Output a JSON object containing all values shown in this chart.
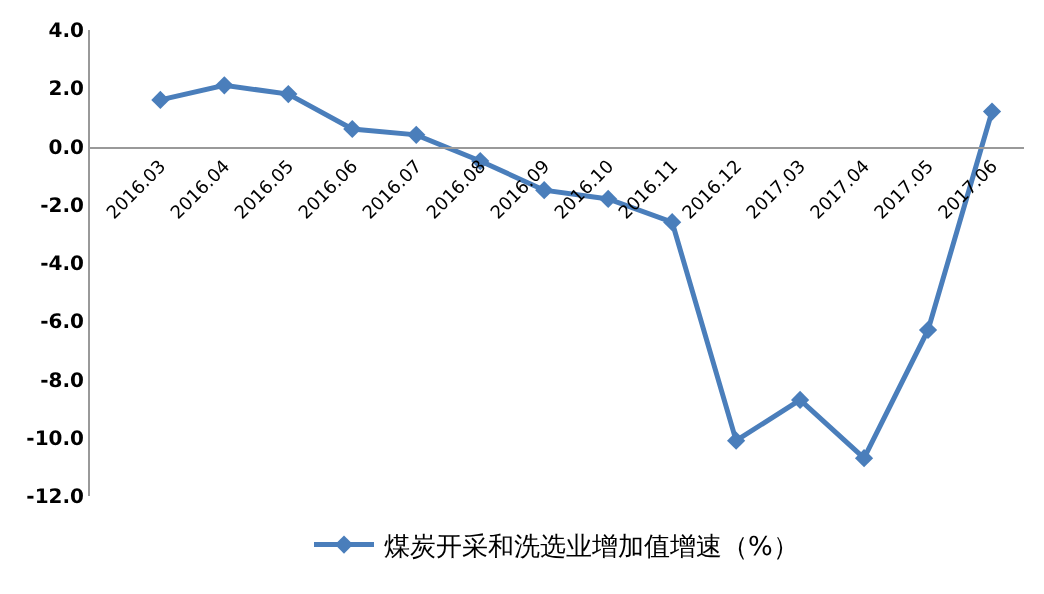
{
  "chart_data": {
    "type": "line",
    "categories": [
      "2016.03",
      "2016.04",
      "2016.05",
      "2016.06",
      "2016.07",
      "2016.08",
      "2016.09",
      "2016.10",
      "2016.11",
      "2016.12",
      "2017.03",
      "2017.04",
      "2017.05",
      "2017.06"
    ],
    "series": [
      {
        "name": "煤炭开采和洗选业增加值增速（%）",
        "color": "#4a7ebb",
        "values": [
          1.6,
          2.1,
          1.8,
          0.6,
          0.4,
          -0.5,
          -1.5,
          -1.8,
          -2.6,
          -10.1,
          -8.7,
          -10.7,
          -6.3,
          1.2
        ]
      }
    ],
    "ylim": [
      -12,
      4
    ],
    "yticks": [
      {
        "value": 4,
        "label": "4.0"
      },
      {
        "value": 2,
        "label": "2.0"
      },
      {
        "value": 0,
        "label": "0.0"
      },
      {
        "value": -2,
        "label": "-2.0"
      },
      {
        "value": -4,
        "label": "-4.0"
      },
      {
        "value": -6,
        "label": "-6.0"
      },
      {
        "value": -8,
        "label": "-8.0"
      },
      {
        "value": -10,
        "label": "-10.0"
      },
      {
        "value": -12,
        "label": "-12.0"
      }
    ],
    "grid": false,
    "legend": "bottom",
    "marker": "diamond",
    "line_style": "solid"
  }
}
